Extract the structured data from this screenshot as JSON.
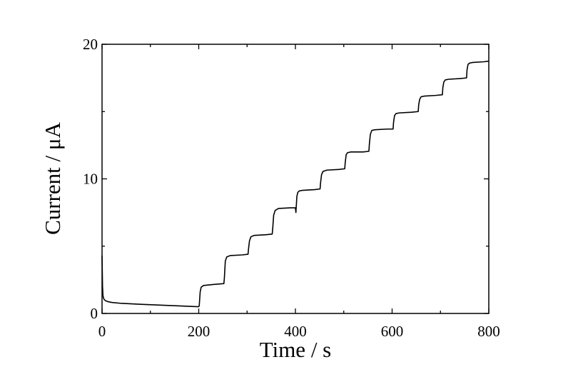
{
  "chart_data": {
    "type": "line",
    "x_label": "Time / s",
    "y_label": "Current / μA",
    "color": "#000000",
    "xlim": [
      0,
      800
    ],
    "ylim": [
      0,
      20
    ],
    "xticks": [
      0,
      200,
      400,
      600,
      800
    ],
    "yticks": [
      0,
      10,
      20
    ],
    "x_minor_ticks": [
      100,
      300,
      500,
      700
    ],
    "y_minor_ticks": [
      5,
      15
    ],
    "x": [
      0,
      1,
      2,
      4,
      7,
      12,
      20,
      40,
      80,
      120,
      160,
      199,
      201,
      203,
      205,
      210,
      230,
      252,
      253,
      255,
      258,
      265,
      290,
      302,
      303,
      305,
      308,
      315,
      340,
      352,
      353,
      355,
      358,
      365,
      390,
      400,
      401,
      403,
      405,
      408,
      415,
      440,
      451,
      452,
      454,
      457,
      465,
      490,
      502,
      503,
      505,
      508,
      515,
      540,
      552,
      553,
      555,
      558,
      565,
      590,
      602,
      603,
      605,
      608,
      615,
      640,
      654,
      655,
      657,
      660,
      667,
      690,
      704,
      705,
      707,
      710,
      717,
      740,
      754,
      755,
      757,
      760,
      767,
      790,
      800
    ],
    "values": [
      4.3,
      2.0,
      1.3,
      1.05,
      0.95,
      0.88,
      0.82,
      0.75,
      0.68,
      0.62,
      0.56,
      0.5,
      0.55,
      1.6,
      1.95,
      2.08,
      2.15,
      2.22,
      2.6,
      3.9,
      4.2,
      4.3,
      4.35,
      4.4,
      4.8,
      5.4,
      5.7,
      5.8,
      5.85,
      5.9,
      6.3,
      7.3,
      7.65,
      7.8,
      7.85,
      7.85,
      7.5,
      8.7,
      9.0,
      9.1,
      9.15,
      9.2,
      9.25,
      9.7,
      10.3,
      10.55,
      10.65,
      10.7,
      10.75,
      11.2,
      11.8,
      11.95,
      12.0,
      12.0,
      12.05,
      12.6,
      13.3,
      13.6,
      13.65,
      13.7,
      13.7,
      14.2,
      14.7,
      14.85,
      14.9,
      14.95,
      15.0,
      15.5,
      15.9,
      16.1,
      16.15,
      16.2,
      16.25,
      16.8,
      17.2,
      17.35,
      17.4,
      17.45,
      17.5,
      18.1,
      18.5,
      18.6,
      18.65,
      18.7,
      18.75
    ]
  }
}
